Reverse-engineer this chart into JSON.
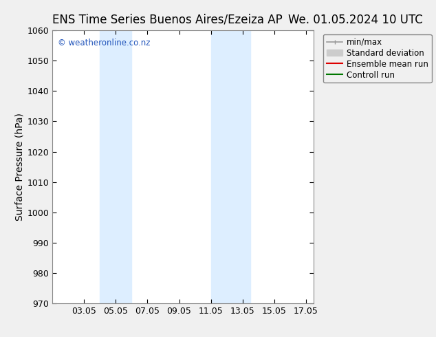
{
  "title_left": "ENS Time Series Buenos Aires/Ezeiza AP",
  "title_right": "We. 01.05.2024 10 UTC",
  "ylabel": "Surface Pressure (hPa)",
  "ylim": [
    970,
    1060
  ],
  "yticks": [
    970,
    980,
    990,
    1000,
    1010,
    1020,
    1030,
    1040,
    1050,
    1060
  ],
  "xtick_labels": [
    "03.05",
    "05.05",
    "07.05",
    "09.05",
    "11.05",
    "13.05",
    "15.05",
    "17.05"
  ],
  "xtick_positions": [
    3,
    5,
    7,
    9,
    11,
    13,
    15,
    17
  ],
  "xlim": [
    1,
    17.5
  ],
  "watermark": "© weatheronline.co.nz",
  "watermark_color": "#2255bb",
  "background_color": "#f0f0f0",
  "plot_bg_color": "#ffffff",
  "shaded_regions": [
    {
      "x_start": 4.0,
      "x_end": 6.0,
      "color": "#ddeeff"
    },
    {
      "x_start": 11.0,
      "x_end": 13.5,
      "color": "#ddeeff"
    }
  ],
  "legend_items": [
    {
      "label": "min/max",
      "color": "#999999",
      "lw": 1.2
    },
    {
      "label": "Standard deviation",
      "color": "#cccccc",
      "lw": 6
    },
    {
      "label": "Ensemble mean run",
      "color": "#dd0000",
      "lw": 1.5
    },
    {
      "label": "Controll run",
      "color": "#007700",
      "lw": 1.5
    }
  ],
  "border_color": "#888888",
  "tick_color": "#000000",
  "title_fontsize": 12,
  "axis_label_fontsize": 10,
  "tick_fontsize": 9,
  "legend_fontsize": 8.5,
  "watermark_fontsize": 8.5,
  "fig_width": 6.34,
  "fig_height": 4.9,
  "dpi": 100
}
